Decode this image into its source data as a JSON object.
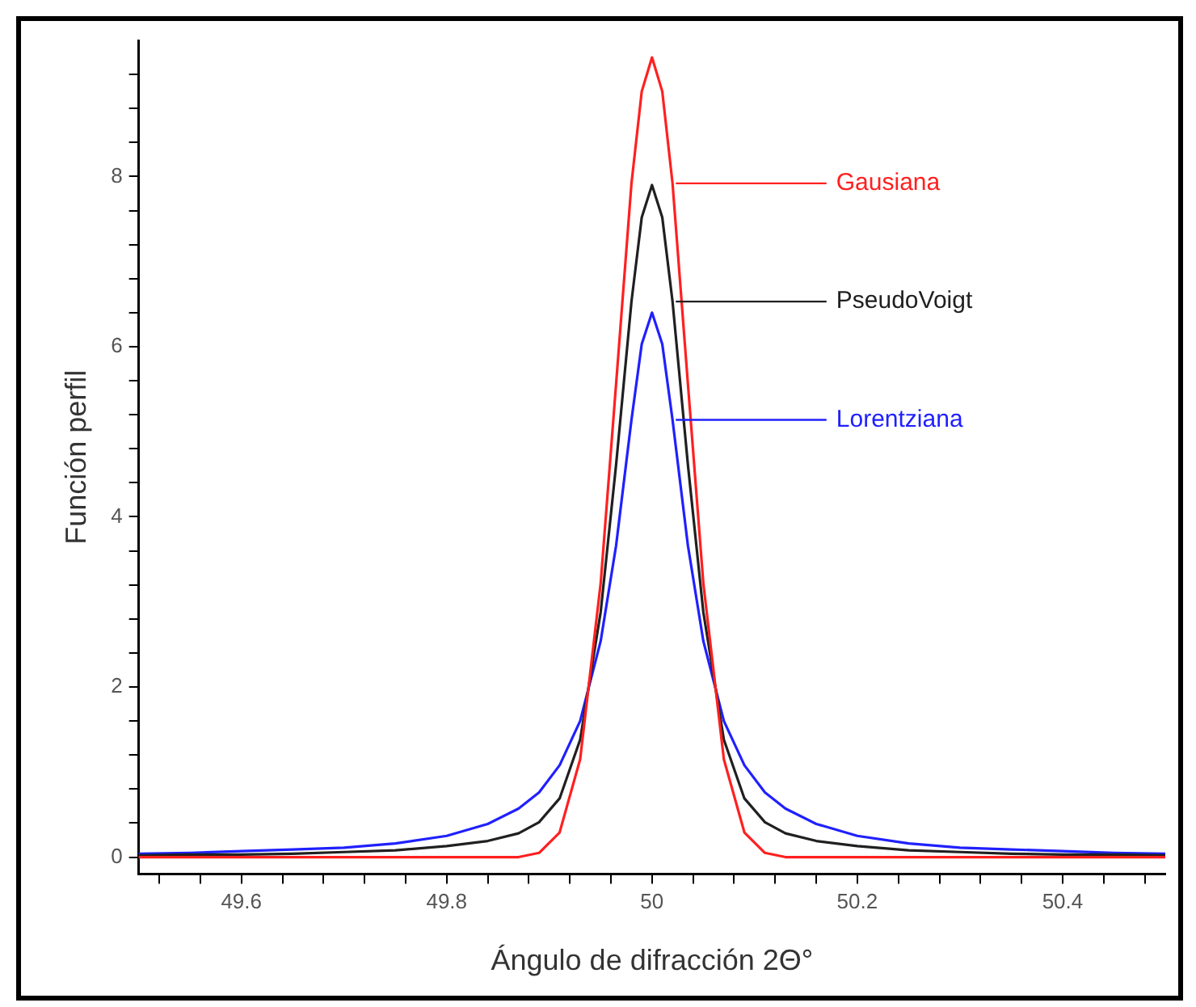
{
  "chart_data": {
    "type": "line",
    "xlabel": "Ángulo de difracción 2Θ°",
    "ylabel": "Función perfil",
    "x": [
      49.5,
      49.55,
      49.6,
      49.65,
      49.7,
      49.75,
      49.8,
      49.84,
      49.87,
      49.89,
      49.91,
      49.93,
      49.95,
      49.965,
      49.98,
      49.99,
      50,
      50.01,
      50.02,
      50.035,
      50.05,
      50.07,
      50.09,
      50.11,
      50.13,
      50.16,
      50.2,
      50.25,
      50.3,
      50.35,
      50.4,
      50.45,
      50.5
    ],
    "series": [
      {
        "name": "Gausiana",
        "color": "#ff2020",
        "values": [
          0,
          0,
          0,
          0,
          0,
          0,
          0,
          0,
          0,
          0.05,
          0.29,
          1.15,
          3.22,
          5.56,
          7.92,
          9.0,
          9.4,
          9.0,
          7.92,
          5.56,
          3.22,
          1.15,
          0.29,
          0.05,
          0,
          0,
          0,
          0,
          0,
          0,
          0,
          0,
          0
        ]
      },
      {
        "name": "PseudoVoigt",
        "color": "#202020",
        "values": [
          0.02,
          0.03,
          0.03,
          0.04,
          0.06,
          0.08,
          0.13,
          0.19,
          0.28,
          0.41,
          0.69,
          1.38,
          2.88,
          4.61,
          6.53,
          7.52,
          7.9,
          7.52,
          6.53,
          4.61,
          2.88,
          1.38,
          0.69,
          0.41,
          0.28,
          0.19,
          0.13,
          0.08,
          0.06,
          0.04,
          0.03,
          0.03,
          0.02
        ]
      },
      {
        "name": "Lorentziana",
        "color": "#2020ff",
        "values": [
          0.04,
          0.05,
          0.07,
          0.09,
          0.11,
          0.16,
          0.25,
          0.39,
          0.57,
          0.76,
          1.08,
          1.6,
          2.54,
          3.66,
          5.14,
          6.03,
          6.4,
          6.03,
          5.14,
          3.66,
          2.54,
          1.6,
          1.08,
          0.76,
          0.57,
          0.39,
          0.25,
          0.16,
          0.11,
          0.09,
          0.07,
          0.05,
          0.04
        ]
      }
    ],
    "xlim": [
      49.5,
      50.5
    ],
    "xticks": [
      {
        "value": 49.52,
        "label": null
      },
      {
        "value": 49.56,
        "label": null
      },
      49.6,
      {
        "value": 49.64,
        "label": null
      },
      {
        "value": 49.68,
        "label": null
      },
      {
        "value": 49.72,
        "label": null
      },
      {
        "value": 49.76,
        "label": null
      },
      49.8,
      {
        "value": 49.84,
        "label": null
      },
      {
        "value": 49.88,
        "label": null
      },
      {
        "value": 49.92,
        "label": null
      },
      {
        "value": 49.96,
        "label": null
      },
      50,
      {
        "value": 50.04,
        "label": null
      },
      {
        "value": 50.08,
        "label": null
      },
      {
        "value": 50.12,
        "label": null
      },
      {
        "value": 50.16,
        "label": null
      },
      50.2,
      {
        "value": 50.24,
        "label": null
      },
      {
        "value": 50.28,
        "label": null
      },
      {
        "value": 50.32,
        "label": null
      },
      {
        "value": 50.36,
        "label": null
      },
      50.4,
      {
        "value": 50.44,
        "label": null
      },
      {
        "value": 50.48,
        "label": null
      }
    ],
    "ylim": [
      -0.2,
      9.6
    ],
    "yticks": [
      0,
      {
        "value": 0.4,
        "label": null
      },
      {
        "value": 0.8,
        "label": null
      },
      {
        "value": 1.2,
        "label": null
      },
      {
        "value": 1.6,
        "label": null
      },
      2,
      {
        "value": 2.4,
        "label": null
      },
      {
        "value": 2.8,
        "label": null
      },
      {
        "value": 3.2,
        "label": null
      },
      {
        "value": 3.6,
        "label": null
      },
      4,
      {
        "value": 4.4,
        "label": null
      },
      {
        "value": 4.8,
        "label": null
      },
      {
        "value": 5.2,
        "label": null
      },
      {
        "value": 5.6,
        "label": null
      },
      6,
      {
        "value": 6.4,
        "label": null
      },
      {
        "value": 6.8,
        "label": null
      },
      {
        "value": 7.2,
        "label": null
      },
      {
        "value": 7.6,
        "label": null
      },
      8,
      {
        "value": 8.4,
        "label": null
      },
      {
        "value": 8.8,
        "label": null
      },
      {
        "value": 9.2,
        "label": null
      }
    ],
    "grid": false,
    "legend": false,
    "marker": "none",
    "line_style": "solid"
  }
}
